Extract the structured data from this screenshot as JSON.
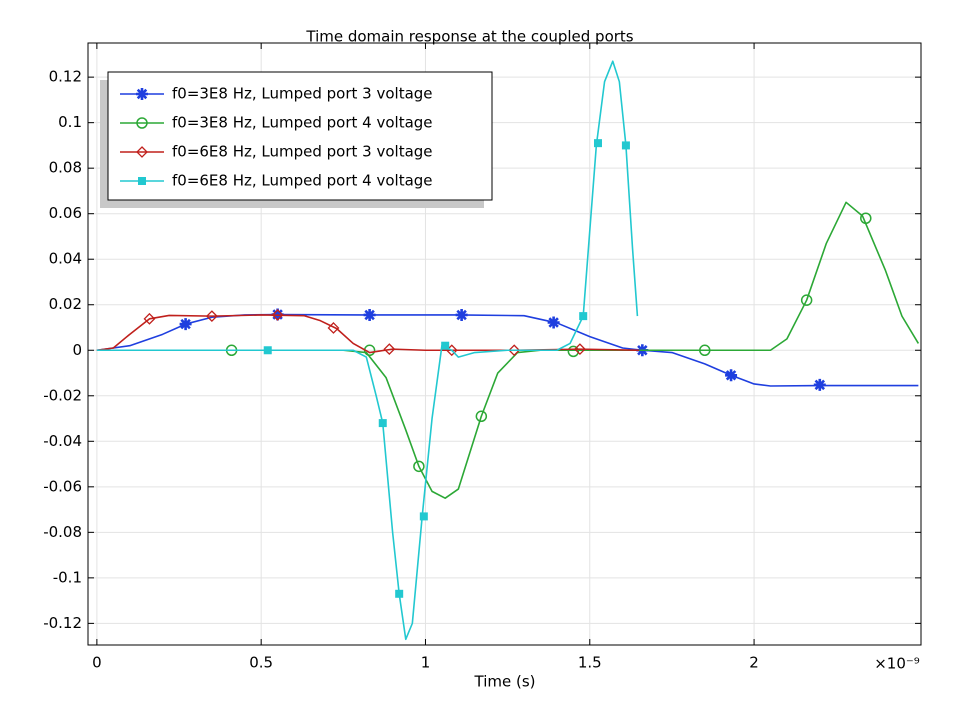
{
  "chart_data": {
    "type": "line",
    "title": "Time domain response at the coupled ports",
    "x_label": "Time (s)",
    "x_exponent_label": "×10⁻⁹",
    "xlim": [
      -0.027,
      2.508
    ],
    "xticks": [
      0,
      0.5,
      1,
      1.5,
      2
    ],
    "ylim": [
      -0.1295,
      0.135
    ],
    "yticks": [
      -0.12,
      -0.1,
      -0.08,
      -0.06,
      -0.04,
      -0.02,
      0,
      0.02,
      0.04,
      0.06,
      0.08,
      0.1,
      0.12
    ],
    "grid": true,
    "legend": "upper left",
    "series": [
      {
        "name": "f0=3E8 Hz, Lumped port 3 voltage",
        "color": "#1f3fdf",
        "marker": "asterisk",
        "x": [
          0,
          0.1,
          0.2,
          0.27,
          0.35,
          0.45,
          0.55,
          0.8,
          1.1,
          1.3,
          1.4,
          1.5,
          1.6,
          1.66,
          1.75,
          1.85,
          1.93,
          2.0,
          2.05,
          2.2,
          2.5
        ],
        "values": [
          0,
          0.002,
          0.007,
          0.0115,
          0.0145,
          0.0155,
          0.0157,
          0.0155,
          0.0155,
          0.0152,
          0.012,
          0.006,
          0.001,
          0,
          -0.001,
          -0.006,
          -0.011,
          -0.0148,
          -0.0157,
          -0.0155,
          -0.0155
        ],
        "marker_x": [
          0.27,
          0.55,
          0.83,
          1.11,
          1.39,
          1.66,
          1.93,
          2.2
        ],
        "marker_values": [
          0.0115,
          0.0157,
          0.0155,
          0.0155,
          0.0122,
          0,
          -0.011,
          -0.0152
        ]
      },
      {
        "name": "f0=3E8 Hz, Lumped port 4 voltage",
        "color": "#2ca836",
        "marker": "circle",
        "x": [
          0,
          0.75,
          0.82,
          0.88,
          0.94,
          0.98,
          1.02,
          1.06,
          1.1,
          1.17,
          1.22,
          1.28,
          1.35,
          2.05,
          2.1,
          2.16,
          2.22,
          2.28,
          2.33,
          2.4,
          2.45,
          2.5
        ],
        "values": [
          0,
          0,
          -0.001,
          -0.012,
          -0.035,
          -0.051,
          -0.062,
          -0.065,
          -0.061,
          -0.029,
          -0.01,
          -0.001,
          0,
          0,
          0.005,
          0.022,
          0.047,
          0.065,
          0.059,
          0.035,
          0.015,
          0.003
        ],
        "marker_x": [
          0.41,
          0.83,
          0.98,
          1.17,
          1.45,
          1.85,
          2.16,
          2.34
        ],
        "marker_values": [
          0,
          0,
          -0.051,
          -0.029,
          -0.0005,
          0,
          0.022,
          0.058
        ]
      },
      {
        "name": "f0=6E8 Hz, Lumped port 3 voltage",
        "color": "#c0201c",
        "marker": "diamond",
        "x": [
          0,
          0.05,
          0.1,
          0.16,
          0.22,
          0.35,
          0.5,
          0.63,
          0.68,
          0.73,
          0.78,
          0.83,
          0.9,
          1.0,
          1.08,
          1.27,
          1.47,
          1.65
        ],
        "values": [
          0,
          0.001,
          0.007,
          0.0138,
          0.0153,
          0.015,
          0.0155,
          0.0152,
          0.013,
          0.0095,
          0.003,
          -0.001,
          0.0005,
          0,
          0,
          0,
          0.0005,
          0
        ],
        "marker_x": [
          0.16,
          0.35,
          0.55,
          0.72,
          0.89,
          1.08,
          1.27,
          1.47
        ],
        "marker_values": [
          0.0138,
          0.015,
          0.0155,
          0.0098,
          0.0005,
          0,
          0,
          0.0005
        ]
      },
      {
        "name": "f0=6E8 Hz, Lumped port 4 voltage",
        "color": "#22c8d0",
        "marker": "square",
        "x": [
          0,
          0.78,
          0.82,
          0.85,
          0.87,
          0.9,
          0.92,
          0.94,
          0.96,
          0.99,
          1.02,
          1.05,
          1.08,
          1.1,
          1.15,
          1.25,
          1.4,
          1.44,
          1.48,
          1.52,
          1.545,
          1.57,
          1.59,
          1.61,
          1.63,
          1.645
        ],
        "values": [
          0,
          0,
          -0.003,
          -0.02,
          -0.032,
          -0.08,
          -0.107,
          -0.127,
          -0.12,
          -0.073,
          -0.03,
          0.002,
          0,
          -0.003,
          -0.001,
          0,
          0,
          0.003,
          0.015,
          0.09,
          0.118,
          0.127,
          0.118,
          0.09,
          0.045,
          0.015
        ],
        "marker_x": [
          0.52,
          0.87,
          0.92,
          0.995,
          1.06,
          1.48,
          1.525,
          1.61
        ],
        "marker_values": [
          0,
          -0.032,
          -0.107,
          -0.073,
          0.002,
          0.015,
          0.091,
          0.09
        ]
      }
    ]
  }
}
